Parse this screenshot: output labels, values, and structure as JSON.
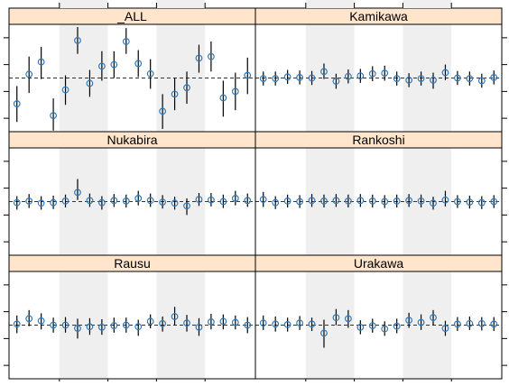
{
  "chart_data": {
    "type": "scatter",
    "layout": "lattice 2x3",
    "ylim": [
      -1.0,
      1.0
    ],
    "y_reference": 0,
    "shaded_bands": [
      [
        4,
        8
      ],
      [
        12,
        16
      ]
    ],
    "colors": {
      "strip": "#ffe5cc",
      "point": "#2f7bbd",
      "band": "#efefef",
      "interval": "#000000"
    },
    "panels": [
      {
        "name": "Rausu",
        "points": [
          {
            "x": 1,
            "y": 0.02,
            "lo": -0.15,
            "hi": 0.18
          },
          {
            "x": 2,
            "y": 0.12,
            "lo": -0.02,
            "hi": 0.28
          },
          {
            "x": 3,
            "y": 0.08,
            "lo": -0.08,
            "hi": 0.22
          },
          {
            "x": 4,
            "y": 0.0,
            "lo": -0.14,
            "hi": 0.14
          },
          {
            "x": 5,
            "y": 0.0,
            "lo": -0.14,
            "hi": 0.15
          },
          {
            "x": 6,
            "y": -0.06,
            "lo": -0.25,
            "hi": 0.12
          },
          {
            "x": 7,
            "y": -0.03,
            "lo": -0.18,
            "hi": 0.13
          },
          {
            "x": 8,
            "y": -0.04,
            "lo": -0.18,
            "hi": 0.11
          },
          {
            "x": 9,
            "y": -0.01,
            "lo": -0.14,
            "hi": 0.14
          },
          {
            "x": 10,
            "y": 0.0,
            "lo": -0.14,
            "hi": 0.14
          },
          {
            "x": 11,
            "y": -0.03,
            "lo": -0.2,
            "hi": 0.1
          },
          {
            "x": 12,
            "y": 0.07,
            "lo": -0.06,
            "hi": 0.2
          },
          {
            "x": 13,
            "y": 0.03,
            "lo": -0.12,
            "hi": 0.16
          },
          {
            "x": 14,
            "y": 0.16,
            "lo": 0.0,
            "hi": 0.34
          },
          {
            "x": 15,
            "y": 0.04,
            "lo": -0.12,
            "hi": 0.19
          },
          {
            "x": 16,
            "y": -0.04,
            "lo": -0.2,
            "hi": 0.13
          },
          {
            "x": 17,
            "y": 0.06,
            "lo": -0.08,
            "hi": 0.21
          },
          {
            "x": 18,
            "y": 0.07,
            "lo": -0.08,
            "hi": 0.2
          },
          {
            "x": 19,
            "y": 0.05,
            "lo": -0.08,
            "hi": 0.18
          },
          {
            "x": 20,
            "y": 0.0,
            "lo": -0.15,
            "hi": 0.15
          }
        ]
      },
      {
        "name": "Urakawa",
        "points": [
          {
            "x": 1,
            "y": 0.04,
            "lo": -0.09,
            "hi": 0.18
          },
          {
            "x": 2,
            "y": 0.02,
            "lo": -0.12,
            "hi": 0.16
          },
          {
            "x": 3,
            "y": 0.01,
            "lo": -0.12,
            "hi": 0.14
          },
          {
            "x": 4,
            "y": 0.04,
            "lo": -0.09,
            "hi": 0.17
          },
          {
            "x": 5,
            "y": 0.02,
            "lo": -0.11,
            "hi": 0.14
          },
          {
            "x": 6,
            "y": -0.15,
            "lo": -0.42,
            "hi": 0.1
          },
          {
            "x": 7,
            "y": 0.14,
            "lo": 0.0,
            "hi": 0.3
          },
          {
            "x": 8,
            "y": 0.12,
            "lo": -0.05,
            "hi": 0.28
          },
          {
            "x": 9,
            "y": -0.04,
            "lo": -0.17,
            "hi": 0.09
          },
          {
            "x": 10,
            "y": -0.01,
            "lo": -0.14,
            "hi": 0.12
          },
          {
            "x": 11,
            "y": -0.07,
            "lo": -0.2,
            "hi": 0.07
          },
          {
            "x": 12,
            "y": -0.02,
            "lo": -0.15,
            "hi": 0.12
          },
          {
            "x": 13,
            "y": 0.09,
            "lo": -0.05,
            "hi": 0.23
          },
          {
            "x": 14,
            "y": 0.05,
            "lo": -0.09,
            "hi": 0.2
          },
          {
            "x": 15,
            "y": 0.14,
            "lo": 0.0,
            "hi": 0.28
          },
          {
            "x": 16,
            "y": -0.06,
            "lo": -0.2,
            "hi": 0.08
          },
          {
            "x": 17,
            "y": 0.02,
            "lo": -0.11,
            "hi": 0.15
          },
          {
            "x": 18,
            "y": 0.03,
            "lo": -0.09,
            "hi": 0.16
          },
          {
            "x": 19,
            "y": 0.03,
            "lo": -0.1,
            "hi": 0.15
          },
          {
            "x": 20,
            "y": 0.02,
            "lo": -0.11,
            "hi": 0.15
          }
        ]
      },
      {
        "name": "Nukabira",
        "points": [
          {
            "x": 1,
            "y": -0.02,
            "lo": -0.15,
            "hi": 0.1
          },
          {
            "x": 2,
            "y": 0.01,
            "lo": -0.12,
            "hi": 0.14
          },
          {
            "x": 3,
            "y": -0.03,
            "lo": -0.15,
            "hi": 0.1
          },
          {
            "x": 4,
            "y": -0.02,
            "lo": -0.14,
            "hi": 0.11
          },
          {
            "x": 5,
            "y": 0.01,
            "lo": -0.11,
            "hi": 0.13
          },
          {
            "x": 6,
            "y": 0.17,
            "lo": 0.03,
            "hi": 0.42
          },
          {
            "x": 7,
            "y": 0.02,
            "lo": -0.1,
            "hi": 0.15
          },
          {
            "x": 8,
            "y": -0.02,
            "lo": -0.15,
            "hi": 0.1
          },
          {
            "x": 9,
            "y": 0.02,
            "lo": -0.1,
            "hi": 0.14
          },
          {
            "x": 10,
            "y": 0.01,
            "lo": -0.11,
            "hi": 0.13
          },
          {
            "x": 11,
            "y": 0.06,
            "lo": -0.07,
            "hi": 0.2
          },
          {
            "x": 12,
            "y": 0.02,
            "lo": -0.1,
            "hi": 0.15
          },
          {
            "x": 13,
            "y": -0.01,
            "lo": -0.13,
            "hi": 0.12
          },
          {
            "x": 14,
            "y": -0.03,
            "lo": -0.15,
            "hi": 0.09
          },
          {
            "x": 15,
            "y": -0.08,
            "lo": -0.25,
            "hi": 0.06
          },
          {
            "x": 16,
            "y": 0.04,
            "lo": -0.08,
            "hi": 0.16
          },
          {
            "x": 17,
            "y": 0.03,
            "lo": -0.09,
            "hi": 0.16
          },
          {
            "x": 18,
            "y": 0.0,
            "lo": -0.12,
            "hi": 0.13
          },
          {
            "x": 19,
            "y": 0.06,
            "lo": -0.07,
            "hi": 0.2
          },
          {
            "x": 20,
            "y": 0.02,
            "lo": -0.1,
            "hi": 0.15
          }
        ]
      },
      {
        "name": "Rankoshi",
        "points": [
          {
            "x": 1,
            "y": 0.04,
            "lo": -0.1,
            "hi": 0.18
          },
          {
            "x": 2,
            "y": -0.02,
            "lo": -0.14,
            "hi": 0.1
          },
          {
            "x": 3,
            "y": 0.01,
            "lo": -0.11,
            "hi": 0.13
          },
          {
            "x": 4,
            "y": 0.0,
            "lo": -0.12,
            "hi": 0.12
          },
          {
            "x": 5,
            "y": 0.02,
            "lo": -0.1,
            "hi": 0.14
          },
          {
            "x": 6,
            "y": 0.01,
            "lo": -0.11,
            "hi": 0.13
          },
          {
            "x": 7,
            "y": 0.02,
            "lo": -0.1,
            "hi": 0.14
          },
          {
            "x": 8,
            "y": 0.01,
            "lo": -0.11,
            "hi": 0.13
          },
          {
            "x": 9,
            "y": 0.02,
            "lo": -0.1,
            "hi": 0.14
          },
          {
            "x": 10,
            "y": 0.01,
            "lo": -0.11,
            "hi": 0.13
          },
          {
            "x": 11,
            "y": 0.0,
            "lo": -0.12,
            "hi": 0.12
          },
          {
            "x": 12,
            "y": 0.01,
            "lo": -0.11,
            "hi": 0.13
          },
          {
            "x": 13,
            "y": 0.02,
            "lo": -0.1,
            "hi": 0.14
          },
          {
            "x": 14,
            "y": 0.01,
            "lo": -0.11,
            "hi": 0.13
          },
          {
            "x": 15,
            "y": -0.03,
            "lo": -0.15,
            "hi": 0.09
          },
          {
            "x": 16,
            "y": 0.03,
            "lo": -0.09,
            "hi": 0.2
          },
          {
            "x": 17,
            "y": 0.0,
            "lo": -0.12,
            "hi": 0.12
          },
          {
            "x": 18,
            "y": -0.01,
            "lo": -0.13,
            "hi": 0.11
          },
          {
            "x": 19,
            "y": -0.02,
            "lo": -0.14,
            "hi": 0.1
          },
          {
            "x": 20,
            "y": 0.0,
            "lo": -0.12,
            "hi": 0.12
          }
        ]
      },
      {
        "name": "_ALL",
        "points": [
          {
            "x": 1,
            "y": -0.48,
            "lo": -0.82,
            "hi": -0.15
          },
          {
            "x": 2,
            "y": 0.07,
            "lo": -0.28,
            "hi": 0.4
          },
          {
            "x": 3,
            "y": 0.3,
            "lo": -0.02,
            "hi": 0.58
          },
          {
            "x": 4,
            "y": -0.7,
            "lo": -0.98,
            "hi": -0.38
          },
          {
            "x": 5,
            "y": -0.22,
            "lo": -0.5,
            "hi": 0.05
          },
          {
            "x": 6,
            "y": 0.7,
            "lo": 0.45,
            "hi": 0.95
          },
          {
            "x": 7,
            "y": -0.1,
            "lo": -0.35,
            "hi": 0.15
          },
          {
            "x": 8,
            "y": 0.22,
            "lo": -0.05,
            "hi": 0.5
          },
          {
            "x": 9,
            "y": 0.25,
            "lo": 0.0,
            "hi": 0.5
          },
          {
            "x": 10,
            "y": 0.68,
            "lo": 0.45,
            "hi": 0.93
          },
          {
            "x": 11,
            "y": 0.27,
            "lo": 0.02,
            "hi": 0.52
          },
          {
            "x": 12,
            "y": 0.08,
            "lo": -0.2,
            "hi": 0.35
          },
          {
            "x": 13,
            "y": -0.62,
            "lo": -0.95,
            "hi": -0.3
          },
          {
            "x": 14,
            "y": -0.3,
            "lo": -0.6,
            "hi": 0.0
          },
          {
            "x": 15,
            "y": -0.18,
            "lo": -0.48,
            "hi": 0.12
          },
          {
            "x": 16,
            "y": 0.37,
            "lo": 0.1,
            "hi": 0.62
          },
          {
            "x": 17,
            "y": 0.4,
            "lo": 0.12,
            "hi": 0.68
          },
          {
            "x": 18,
            "y": -0.37,
            "lo": -0.72,
            "hi": -0.05
          },
          {
            "x": 19,
            "y": -0.25,
            "lo": -0.6,
            "hi": 0.1
          },
          {
            "x": 20,
            "y": 0.05,
            "lo": -0.3,
            "hi": 0.38
          }
        ]
      },
      {
        "name": "Kamikawa",
        "points": [
          {
            "x": 1,
            "y": -0.01,
            "lo": -0.14,
            "hi": 0.12
          },
          {
            "x": 2,
            "y": -0.01,
            "lo": -0.14,
            "hi": 0.12
          },
          {
            "x": 3,
            "y": 0.02,
            "lo": -0.11,
            "hi": 0.15
          },
          {
            "x": 4,
            "y": 0.01,
            "lo": -0.12,
            "hi": 0.14
          },
          {
            "x": 5,
            "y": 0.0,
            "lo": -0.13,
            "hi": 0.13
          },
          {
            "x": 6,
            "y": 0.12,
            "lo": -0.02,
            "hi": 0.27
          },
          {
            "x": 7,
            "y": -0.06,
            "lo": -0.2,
            "hi": 0.08
          },
          {
            "x": 8,
            "y": 0.03,
            "lo": -0.1,
            "hi": 0.16
          },
          {
            "x": 9,
            "y": 0.04,
            "lo": -0.09,
            "hi": 0.17
          },
          {
            "x": 10,
            "y": 0.08,
            "lo": -0.06,
            "hi": 0.22
          },
          {
            "x": 11,
            "y": 0.09,
            "lo": -0.05,
            "hi": 0.23
          },
          {
            "x": 12,
            "y": -0.01,
            "lo": -0.14,
            "hi": 0.12
          },
          {
            "x": 13,
            "y": -0.04,
            "lo": -0.17,
            "hi": 0.09
          },
          {
            "x": 14,
            "y": -0.01,
            "lo": -0.14,
            "hi": 0.12
          },
          {
            "x": 15,
            "y": -0.04,
            "lo": -0.2,
            "hi": 0.1
          },
          {
            "x": 16,
            "y": 0.1,
            "lo": -0.04,
            "hi": 0.25
          },
          {
            "x": 17,
            "y": 0.0,
            "lo": -0.13,
            "hi": 0.13
          },
          {
            "x": 18,
            "y": -0.01,
            "lo": -0.14,
            "hi": 0.12
          },
          {
            "x": 19,
            "y": -0.05,
            "lo": -0.18,
            "hi": 0.08
          },
          {
            "x": 20,
            "y": 0.01,
            "lo": -0.12,
            "hi": 0.14
          }
        ]
      }
    ]
  }
}
